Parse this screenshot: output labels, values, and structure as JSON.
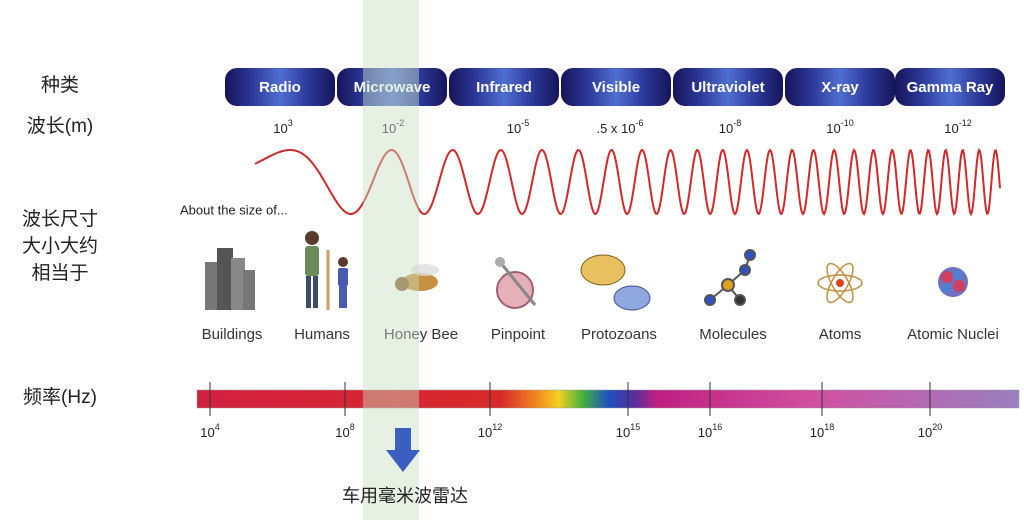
{
  "labels": {
    "type": "种类",
    "wavelength": "波长(m)",
    "size": [
      "波长尺寸",
      "大小大约",
      "相当于"
    ],
    "frequency": "频率(Hz)"
  },
  "bands": [
    "Radio",
    "Microwave",
    "Infrared",
    "Visible",
    "Ultraviolet",
    "X-ray",
    "Gamma Ray"
  ],
  "wavelengths": [
    {
      "base": "10",
      "exp": "3"
    },
    {
      "base": "10",
      "exp": "-2"
    },
    {
      "base": "10",
      "exp": "-5"
    },
    {
      "base": ".5 x 10",
      "exp": "-6"
    },
    {
      "base": "10",
      "exp": "-8"
    },
    {
      "base": "10",
      "exp": "-10"
    },
    {
      "base": "10",
      "exp": "-12"
    }
  ],
  "size_caption": "About the size of...",
  "objects": [
    "Buildings",
    "Humans",
    "Honey Bee",
    "Pinpoint",
    "Protozoans",
    "Molecules",
    "Atoms",
    "Atomic Nuclei"
  ],
  "frequencies": [
    {
      "base": "10",
      "exp": "4"
    },
    {
      "base": "10",
      "exp": "8"
    },
    {
      "base": "10",
      "exp": "12"
    },
    {
      "base": "10",
      "exp": "15"
    },
    {
      "base": "10",
      "exp": "16"
    },
    {
      "base": "10",
      "exp": "18"
    },
    {
      "base": "10",
      "exp": "20"
    }
  ],
  "highlight_caption": "车用毫米波雷达"
}
